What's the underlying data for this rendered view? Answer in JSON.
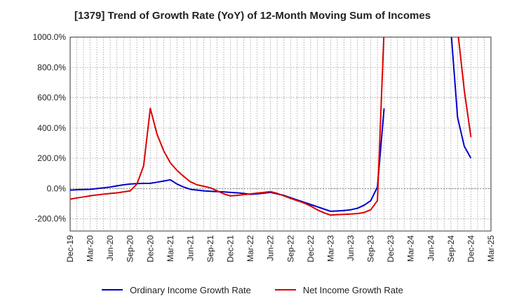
{
  "title": "[1379]  Trend of Growth Rate (YoY) of 12-Month Moving Sum of Incomes",
  "legend": [
    {
      "label": "Ordinary Income Growth Rate",
      "color": "#0000cc"
    },
    {
      "label": "Net Income Growth Rate",
      "color": "#dd0000"
    }
  ],
  "chart_data": {
    "type": "line",
    "title": "[1379]  Trend of Growth Rate (YoY) of 12-Month Moving Sum of Incomes",
    "xlabel": "",
    "ylabel": "",
    "ylim": [
      -280,
      1000
    ],
    "y_ticks": [
      -200,
      0,
      200,
      400,
      600,
      800,
      1000
    ],
    "y_tick_labels": [
      "-200.0%",
      "0.0%",
      "200.0%",
      "400.0%",
      "600.0%",
      "800.0%",
      "1000.0%"
    ],
    "x_tick_labels": [
      "Dec-19",
      "Mar-20",
      "Jun-20",
      "Sep-20",
      "Dec-20",
      "Mar-21",
      "Jun-21",
      "Sep-21",
      "Dec-21",
      "Mar-22",
      "Jun-22",
      "Sep-22",
      "Dec-22",
      "Mar-23",
      "Jun-23",
      "Sep-23",
      "Dec-23",
      "Mar-24",
      "Jun-24",
      "Sep-24",
      "Dec-24",
      "Mar-25"
    ],
    "grid": true,
    "legend_position": "bottom",
    "series": [
      {
        "name": "Ordinary Income Growth Rate",
        "color": "#0000cc",
        "x": [
          "Dec-19",
          "Jan-20",
          "Feb-20",
          "Mar-20",
          "Apr-20",
          "May-20",
          "Jun-20",
          "Jul-20",
          "Aug-20",
          "Sep-20",
          "Oct-20",
          "Nov-20",
          "Dec-20",
          "Jan-21",
          "Feb-21",
          "Mar-21",
          "Apr-21",
          "May-21",
          "Jun-21",
          "Jul-21",
          "Aug-21",
          "Sep-21",
          "Oct-21",
          "Nov-21",
          "Dec-21",
          "Jan-22",
          "Feb-22",
          "Mar-22",
          "Apr-22",
          "May-22",
          "Jun-22",
          "Jul-22",
          "Aug-22",
          "Sep-22",
          "Oct-22",
          "Nov-22",
          "Dec-22",
          "Jan-23",
          "Feb-23",
          "Mar-23",
          "Apr-23",
          "May-23",
          "Jun-23",
          "Jul-23",
          "Aug-23",
          "Sep-23",
          "Oct-23",
          "Nov-23",
          "Dec-23",
          "Jan-24",
          "Feb-24",
          "Mar-24",
          "Apr-24",
          "May-24",
          "Jun-24",
          "Jul-24",
          "Aug-24",
          "Sep-24",
          "Oct-24",
          "Nov-24",
          "Dec-24"
        ],
        "values": [
          -10,
          -8,
          -6,
          -5,
          0,
          5,
          10,
          18,
          25,
          30,
          33,
          34,
          35,
          42,
          50,
          58,
          30,
          10,
          -5,
          -10,
          -15,
          -18,
          -20,
          -22,
          -25,
          -28,
          -32,
          -38,
          -35,
          -30,
          -25,
          -35,
          -45,
          -60,
          -75,
          -90,
          -105,
          -120,
          -135,
          -150,
          -148,
          -145,
          -140,
          -130,
          -110,
          -80,
          10,
          530,
          null,
          null,
          null,
          null,
          null,
          null,
          null,
          null,
          null,
          1050,
          470,
          280,
          200
        ]
      },
      {
        "name": "Net Income Growth Rate",
        "color": "#dd0000",
        "x": [
          "Dec-19",
          "Jan-20",
          "Feb-20",
          "Mar-20",
          "Apr-20",
          "May-20",
          "Jun-20",
          "Jul-20",
          "Aug-20",
          "Sep-20",
          "Oct-20",
          "Nov-20",
          "Dec-20",
          "Jan-21",
          "Feb-21",
          "Mar-21",
          "Apr-21",
          "May-21",
          "Jun-21",
          "Jul-21",
          "Aug-21",
          "Sep-21",
          "Oct-21",
          "Nov-21",
          "Dec-21",
          "Jan-22",
          "Feb-22",
          "Mar-22",
          "Apr-22",
          "May-22",
          "Jun-22",
          "Jul-22",
          "Aug-22",
          "Sep-22",
          "Oct-22",
          "Nov-22",
          "Dec-22",
          "Jan-23",
          "Feb-23",
          "Mar-23",
          "Apr-23",
          "May-23",
          "Jun-23",
          "Jul-23",
          "Aug-23",
          "Sep-23",
          "Oct-23",
          "Nov-23",
          "Dec-23",
          "Jan-24",
          "Feb-24",
          "Mar-24",
          "Apr-24",
          "May-24",
          "Jun-24",
          "Jul-24",
          "Aug-24",
          "Sep-24",
          "Oct-24",
          "Nov-24",
          "Dec-24"
        ],
        "values": [
          -70,
          -62,
          -55,
          -48,
          -42,
          -37,
          -32,
          -28,
          -22,
          -15,
          30,
          150,
          530,
          360,
          250,
          170,
          120,
          80,
          45,
          25,
          15,
          5,
          -15,
          -35,
          -48,
          -45,
          -40,
          -35,
          -30,
          -25,
          -20,
          -32,
          -48,
          -65,
          -80,
          -95,
          -115,
          -140,
          -160,
          -175,
          -172,
          -170,
          -168,
          -165,
          -158,
          -140,
          -80,
          1050,
          null,
          null,
          null,
          null,
          null,
          null,
          null,
          null,
          null,
          null,
          1050,
          650,
          340
        ]
      }
    ]
  }
}
